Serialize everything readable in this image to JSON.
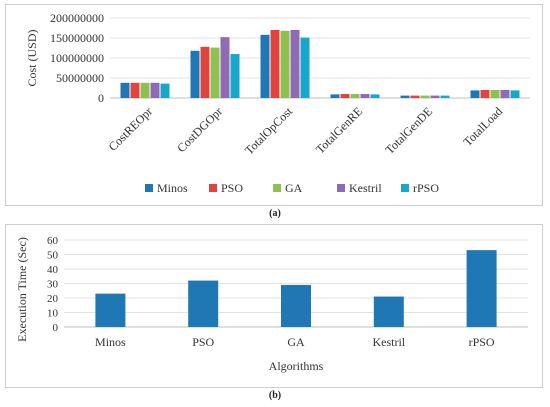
{
  "chart_data": [
    {
      "type": "bar",
      "panel_label": "(a)",
      "ylabel": "Cost (USD)",
      "ylim": [
        0,
        200000000
      ],
      "yticks": [
        "0",
        "50000000",
        "100000000",
        "150000000",
        "200000000"
      ],
      "grid": true,
      "legend_position": "bottom",
      "categories": [
        "CostREOpr",
        "CostDGOpr",
        "TotalOpCost",
        "TotalGenRE",
        "TotalGenDE",
        "TotalLoad"
      ],
      "series": [
        {
          "name": "Minos",
          "color": "#1f77b4",
          "values": [
            38000000,
            118000000,
            158000000,
            9000000,
            6000000,
            19000000
          ]
        },
        {
          "name": "PSO",
          "color": "#e0443e",
          "values": [
            38000000,
            128000000,
            170000000,
            10000000,
            6000000,
            20000000
          ]
        },
        {
          "name": "GA",
          "color": "#8cc152",
          "values": [
            38000000,
            126000000,
            168000000,
            10000000,
            6000000,
            20000000
          ]
        },
        {
          "name": "Kestril",
          "color": "#8e6bb3",
          "values": [
            38000000,
            152000000,
            170000000,
            10000000,
            6000000,
            20000000
          ]
        },
        {
          "name": "rPSO",
          "color": "#17a8c9",
          "values": [
            36000000,
            110000000,
            151000000,
            9000000,
            6000000,
            19000000
          ]
        }
      ]
    },
    {
      "type": "bar",
      "panel_label": "(b)",
      "xlabel": "Algorithms",
      "ylabel": "Execution Time (Sec)",
      "ylim": [
        0,
        60
      ],
      "yticks": [
        "0",
        "10",
        "20",
        "30",
        "40",
        "50",
        "60"
      ],
      "grid": true,
      "categories": [
        "Minos",
        "PSO",
        "GA",
        "Kestril",
        "rPSO"
      ],
      "color": "#1f77b4",
      "values": [
        23,
        32,
        29,
        21,
        53
      ]
    }
  ]
}
